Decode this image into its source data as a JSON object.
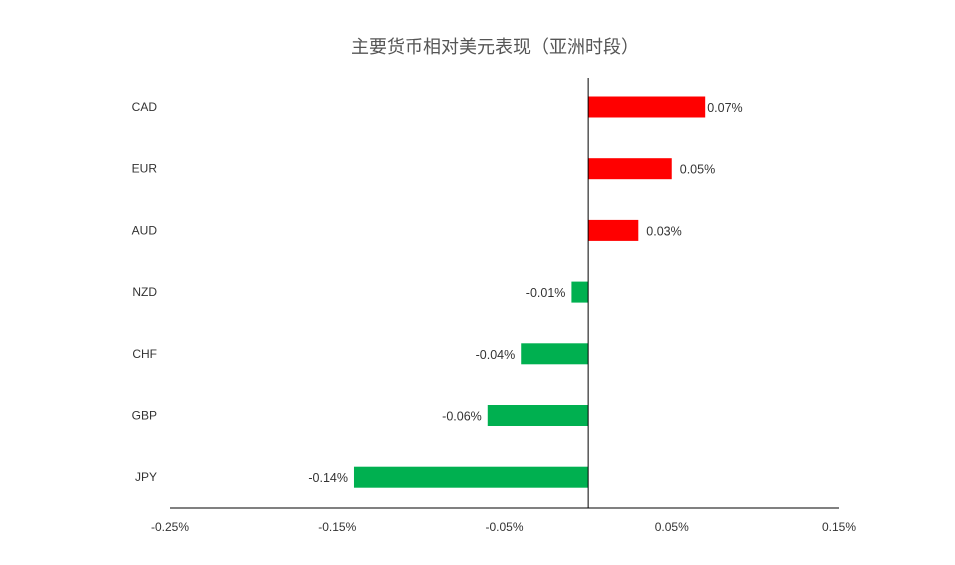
{
  "chart_data": {
    "type": "bar",
    "orientation": "horizontal",
    "title": "主要货币相对美元表现（亚洲时段）",
    "xlabel": "",
    "ylabel": "",
    "categories": [
      "CAD",
      "EUR",
      "AUD",
      "NZD",
      "CHF",
      "GBP",
      "JPY"
    ],
    "values": [
      0.07,
      0.05,
      0.03,
      -0.01,
      -0.04,
      -0.06,
      -0.14
    ],
    "value_labels": [
      "0.07%",
      "0.05%",
      "0.03%",
      "-0.01%",
      "-0.04%",
      "-0.06%",
      "-0.14%"
    ],
    "xlim": [
      -0.25,
      0.15
    ],
    "x_ticks": [
      -0.25,
      -0.15,
      -0.05,
      0.05,
      0.15
    ],
    "x_tick_labels": [
      "-0.25%",
      "-0.15%",
      "-0.05%",
      "0.05%",
      "0.15%"
    ],
    "grid": false,
    "legend": "none",
    "colors": {
      "positive": "#ff0000",
      "negative": "#00b050",
      "text": "#333333",
      "axis": "#000000",
      "title": "#555555"
    }
  }
}
